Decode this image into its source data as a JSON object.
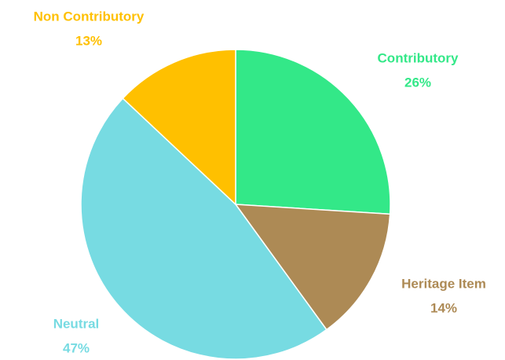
{
  "chart_data": {
    "type": "pie",
    "categories": [
      "Contributory",
      "Heritage Item",
      "Neutral",
      "Non Contributory"
    ],
    "values": [
      26,
      14,
      47,
      13
    ],
    "value_labels": [
      "26%",
      "14%",
      "47%",
      "13%"
    ],
    "colors": [
      "#33e888",
      "#ad8a55",
      "#77dbe2",
      "#ffc000"
    ]
  }
}
